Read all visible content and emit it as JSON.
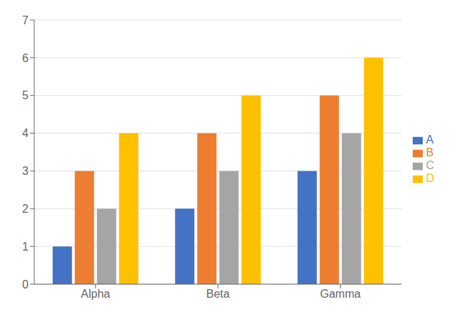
{
  "chart_data": {
    "type": "bar",
    "categories": [
      "Alpha",
      "Beta",
      "Gamma"
    ],
    "series": [
      {
        "name": "A",
        "color": "#4472C4",
        "values": [
          1,
          2,
          3
        ]
      },
      {
        "name": "B",
        "color": "#ED7D31",
        "values": [
          3,
          4,
          5
        ]
      },
      {
        "name": "C",
        "color": "#A5A5A5",
        "values": [
          2,
          3,
          4
        ]
      },
      {
        "name": "D",
        "color": "#FFC000",
        "values": [
          4,
          5,
          6
        ]
      }
    ],
    "ylim": [
      0,
      7
    ],
    "yticks": [
      0,
      1,
      2,
      3,
      4,
      5,
      6,
      7
    ],
    "grid": true,
    "legend": "right"
  }
}
